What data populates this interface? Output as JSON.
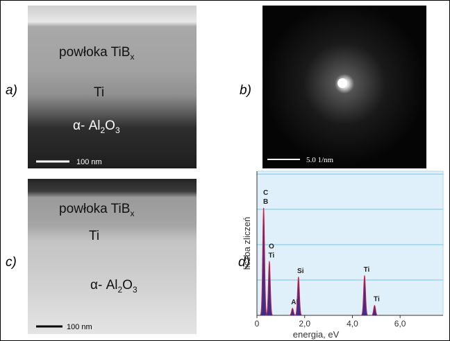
{
  "panels": [
    {
      "label": "a)",
      "layers": [
        [
          "powłoka TiB",
          "x"
        ],
        [
          "Ti"
        ],
        [
          "α- Al",
          "2",
          "O",
          "3"
        ]
      ],
      "scale_bar": "100 nm"
    },
    {
      "label": "b)",
      "scale_bar": "5.0 1/nm"
    },
    {
      "label": "c)",
      "layers": [
        [
          "powłoka TiB",
          "x"
        ],
        [
          "Ti"
        ],
        [
          "α- Al",
          "2",
          "O",
          "3"
        ]
      ],
      "scale_bar": "100 nm"
    },
    {
      "label": "d)",
      "chart": {
        "type": "spectrum",
        "x_label": "energia, eV",
        "y_label": "liczba zliczeń",
        "xlim": [
          0,
          7.8
        ],
        "xticks": [
          {
            "value": 0,
            "label": "0"
          },
          {
            "value": 2,
            "label": "2,0"
          },
          {
            "value": 4,
            "label": "4,0"
          },
          {
            "value": 6,
            "label": "6,0"
          }
        ],
        "ylim": [
          0,
          102
        ],
        "grid_lines": [
          25,
          50,
          75,
          100
        ],
        "color": "#3b2f8f",
        "peaks": [
          {
            "labels": [
              "C",
              "B"
            ],
            "x": 0.28,
            "y": 76
          },
          {
            "labels": [
              "O",
              "Ti"
            ],
            "x": 0.52,
            "y": 38
          },
          {
            "labels": [
              "Al"
            ],
            "x": 1.49,
            "y": 5
          },
          {
            "labels": [
              "Si"
            ],
            "x": 1.74,
            "y": 27
          },
          {
            "labels": [
              "Ti"
            ],
            "x": 4.51,
            "y": 28
          },
          {
            "labels": [
              "Ti"
            ],
            "x": 4.93,
            "y": 7
          }
        ]
      }
    }
  ]
}
